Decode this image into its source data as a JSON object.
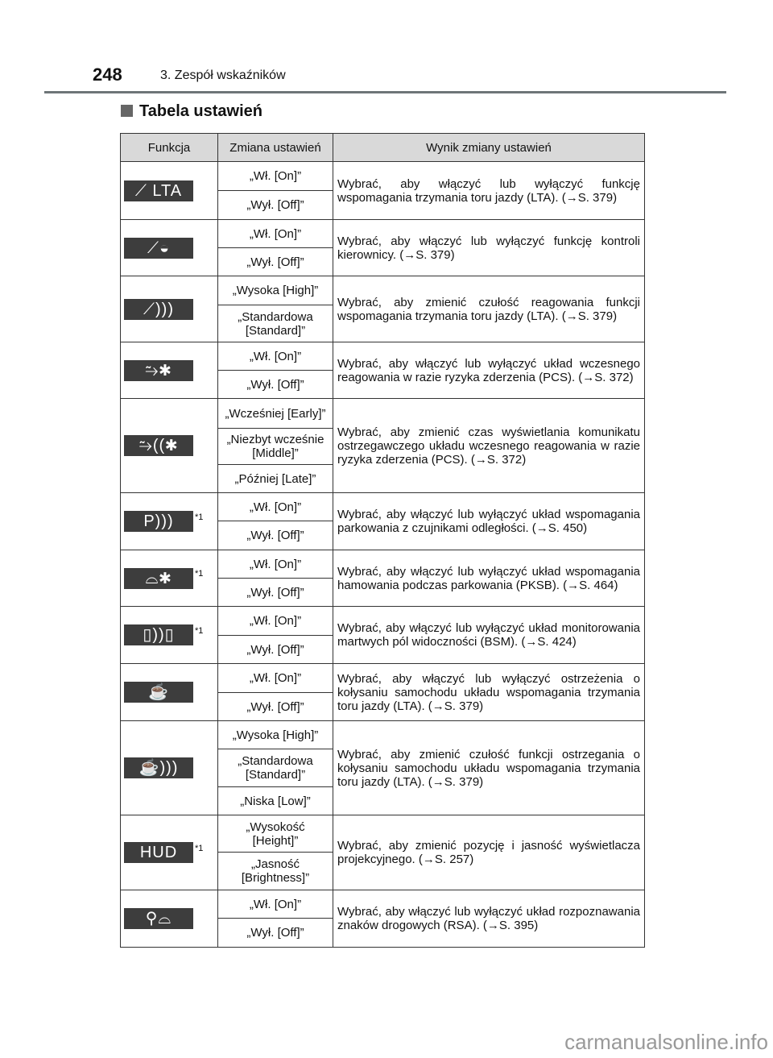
{
  "header": {
    "page_number": "248",
    "chapter": "3. Zespół wskaźników"
  },
  "section_title": "Tabela ustawień",
  "table": {
    "columns": [
      "Funkcja",
      "Zmiana ustawień",
      "Wynik zmiany ustawień"
    ],
    "rows": [
      {
        "icon": "lta-icon",
        "icon_text": "⟋ LTA",
        "note": "",
        "options": [
          "„Wł. [On]”",
          "„Wył. [Off]”"
        ],
        "result": "Wybrać, aby włączyć lub wyłączyć funkcję wspomagania trzymania toru jazdy (LTA). (→S. 379)"
      },
      {
        "icon": "steering-control-icon",
        "icon_text": "⟋◒",
        "note": "",
        "options": [
          "„Wł. [On]”",
          "„Wył. [Off]”"
        ],
        "result": "Wybrać, aby włączyć lub wyłączyć funkcję kontroli kierownicy. (→S. 379)"
      },
      {
        "icon": "lta-sensitivity-icon",
        "icon_text": "⟋)))",
        "note": "",
        "options": [
          "„Wysoka [High]”",
          "„Standardowa [Standard]”"
        ],
        "result": "Wybrać, aby zmienić czułość reagowania funkcji wspomagania trzymania toru jazdy (LTA). (→S. 379)"
      },
      {
        "icon": "pcs-icon",
        "icon_text": "⥲✱",
        "note": "",
        "options": [
          "„Wł. [On]”",
          "„Wył. [Off]”"
        ],
        "result": "Wybrać, aby włączyć lub wyłączyć układ wczesnego reagowania w razie ryzyka zderzenia (PCS). (→S. 372)"
      },
      {
        "icon": "pcs-timing-icon",
        "icon_text": "⥲((✱",
        "note": "",
        "options": [
          "„Wcześniej [Early]”",
          "„Niezbyt wcześnie [Middle]”",
          "„Później [Late]”"
        ],
        "result": "Wybrać, aby zmienić czas wyświetlania komunikatu ostrzegawczego układu wczesnego reagowania w razie ryzyka zderzenia (PCS). (→S. 372)"
      },
      {
        "icon": "parking-sensor-icon",
        "icon_text": "P)))",
        "note": "*1",
        "options": [
          "„Wł. [On]”",
          "„Wył. [Off]”"
        ],
        "result": "Wybrać, aby włączyć lub wyłączyć układ wspomagania parkowania z czujnikami odległości. (→S. 450)"
      },
      {
        "icon": "pksb-icon",
        "icon_text": "⌓✱",
        "note": "*1",
        "options": [
          "„Wł. [On]”",
          "„Wył. [Off]”"
        ],
        "result": "Wybrać, aby włączyć lub wyłączyć układ wspomagania hamowania podczas parkowania (PKSB). (→S. 464)"
      },
      {
        "icon": "bsm-icon",
        "icon_text": "▯))▯",
        "note": "*1",
        "options": [
          "„Wł. [On]”",
          "„Wył. [Off]”"
        ],
        "result": "Wybrać, aby włączyć lub wyłączyć układ monitorowania martwych pól widoczności (BSM). (→S. 424)"
      },
      {
        "icon": "sway-warning-icon",
        "icon_text": "☕",
        "note": "",
        "options": [
          "„Wł. [On]”",
          "„Wył. [Off]”"
        ],
        "result": "Wybrać, aby włączyć lub wyłączyć ostrzeżenia o kołysaniu samochodu układu wspomagania trzymania toru jazdy (LTA). (→S. 379)"
      },
      {
        "icon": "sway-sensitivity-icon",
        "icon_text": "☕)))",
        "note": "",
        "options": [
          "„Wysoka [High]”",
          "„Standardowa [Standard]”",
          "„Niska [Low]”"
        ],
        "result": "Wybrać, aby zmienić czułość funkcji ostrzegania o kołysaniu samochodu układu wspomagania trzymania toru jazdy (LTA). (→S. 379)"
      },
      {
        "icon": "hud-icon",
        "icon_text": "HUD",
        "note": "*1",
        "options": [
          "„Wysokość [Height]”",
          "„Jasność [Brightness]”"
        ],
        "result": "Wybrać, aby zmienić pozycję i jasność wyświetlacza projekcyjnego. (→S. 257)"
      },
      {
        "icon": "rsa-icon",
        "icon_text": "⚲⌓",
        "note": "",
        "options": [
          "„Wł. [On]”",
          "„Wył. [Off]”"
        ],
        "result": "Wybrać, aby włączyć lub wyłączyć układ rozpoznawania znaków drogowych (RSA). (→S. 395)"
      }
    ]
  },
  "watermark": "carmanualsonline.info"
}
